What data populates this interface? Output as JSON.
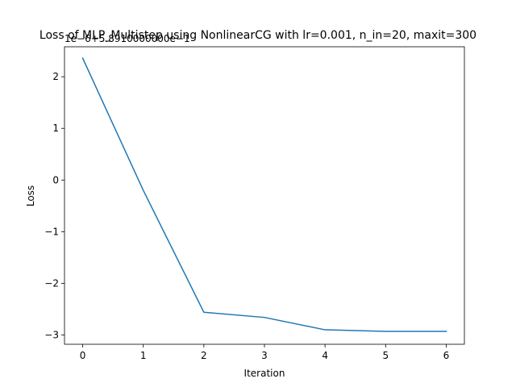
{
  "chart_data": {
    "type": "line",
    "title": "Loss of MLP_Multistep using NonlinearCG with lr=0.001, n_in=20, maxit=300",
    "offset_label": "1e−6+5.8910000000e−1",
    "xlabel": "Iteration",
    "ylabel": "Loss",
    "xlim": [
      -0.3,
      6.3
    ],
    "ylim": [
      -3.18,
      2.58
    ],
    "x_ticks": [
      0,
      1,
      2,
      3,
      4,
      5,
      6
    ],
    "y_ticks": [
      -3,
      -2,
      -1,
      0,
      1,
      2
    ],
    "x_tick_labels": [
      "0",
      "1",
      "2",
      "3",
      "4",
      "5",
      "6"
    ],
    "y_tick_labels": [
      "−3",
      "−2",
      "−1",
      "0",
      "1",
      "2"
    ],
    "grid": false,
    "legend": "none",
    "series": [
      {
        "x": [
          0,
          1,
          2,
          3,
          4,
          5,
          6
        ],
        "values": [
          2.36,
          -0.2,
          -2.56,
          -2.66,
          -2.9,
          -2.93,
          -2.93
        ]
      }
    ],
    "line_color": "#1f77b4"
  }
}
